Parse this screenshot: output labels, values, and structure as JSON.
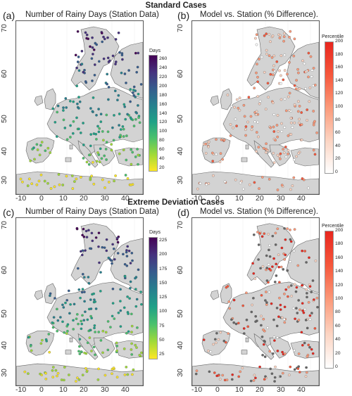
{
  "sections": {
    "standard": "Standard Cases",
    "extreme": "Extreme Deviation Cases"
  },
  "panels": [
    {
      "letter": "(a)",
      "title": "Number of Rainy Days (Station Data)",
      "legend_title": "Days",
      "ticks": [
        "260",
        "240",
        "220",
        "200",
        "180",
        "160",
        "140",
        "120",
        "100",
        "80",
        "60",
        "40",
        "20"
      ],
      "palette": "viridis"
    },
    {
      "letter": "(b)",
      "title": "Model vs. Station (% Difference).",
      "legend_title": "Percentile",
      "ticks": [
        "200",
        "180",
        "160",
        "140",
        "120",
        "100",
        "80",
        "60",
        "40",
        "20",
        "0"
      ],
      "palette": "reds"
    },
    {
      "letter": "(c)",
      "title": "Number of Rainy Days (Station Data)",
      "legend_title": "Days",
      "ticks": [
        "225",
        "200",
        "175",
        "150",
        "125",
        "100",
        "75",
        "50",
        "25"
      ],
      "palette": "viridis"
    },
    {
      "letter": "(d)",
      "title": "Model vs. Station (% Difference).",
      "legend_title": "Percentile",
      "ticks": [
        "200",
        "180",
        "160",
        "140",
        "120",
        "100",
        "80",
        "60",
        "40",
        "20",
        "0"
      ],
      "palette": "reds"
    }
  ],
  "axes": {
    "y_ticks": [
      "70",
      "60",
      "50",
      "40",
      "30"
    ],
    "x_ticks": [
      "-10",
      "0",
      "10",
      "20",
      "30",
      "40"
    ]
  },
  "colors": {
    "land": "#d3d3d3",
    "border": "#666666",
    "sea": "#ffffff",
    "viridis": [
      "#fde725",
      "#a0da39",
      "#4ac16d",
      "#1fa187",
      "#277f8e",
      "#365c8d",
      "#46327e",
      "#440154"
    ],
    "reds": [
      "#ffffff",
      "#fcd4c2",
      "#fb9a7a",
      "#f6583c",
      "#e8261e"
    ]
  }
}
